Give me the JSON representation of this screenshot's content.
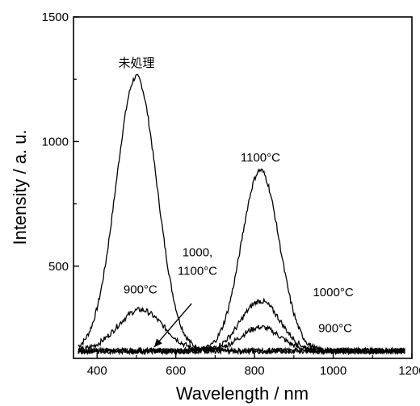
{
  "chart_data": {
    "type": "line",
    "title": "",
    "xlabel": "Wavelength / nm",
    "ylabel": "Intensity / a. u.",
    "xlim": [
      340,
      1200
    ],
    "ylim": [
      130,
      1500
    ],
    "xticks": [
      400,
      600,
      800,
      1000,
      1200
    ],
    "xtick_labels": [
      "400",
      "600",
      "800",
      "1000",
      "1200"
    ],
    "yticks": [
      500,
      1000,
      1500
    ],
    "ytick_labels": [
      "500",
      "1000",
      "1500"
    ],
    "grid": false,
    "legend": "none",
    "baseline": 160,
    "series": [
      {
        "name": "未処理",
        "peaks": [
          {
            "center": 500,
            "height": 1100,
            "width": 52
          }
        ]
      },
      {
        "name": "900°C",
        "peaks": [
          {
            "center": 510,
            "height": 165,
            "width": 58
          },
          {
            "center": 815,
            "height": 95,
            "width": 50
          }
        ]
      },
      {
        "name": "1000°C",
        "peaks": [
          {
            "center": 815,
            "height": 200,
            "width": 50
          }
        ]
      },
      {
        "name": "1100°C",
        "peaks": [
          {
            "center": 815,
            "height": 725,
            "width": 48
          }
        ]
      },
      {
        "name": "1000, 1100°C",
        "peaks": []
      }
    ],
    "annotations": [
      {
        "text": "未処理",
        "x": 500,
        "y": 1300
      },
      {
        "text": "1100°C",
        "x": 815,
        "y": 920
      },
      {
        "text": "1000°C",
        "x": 1000,
        "y": 380
      },
      {
        "text": "900°C",
        "x": 1005,
        "y": 235
      },
      {
        "text": "900°C",
        "x": 510,
        "y": 390
      },
      {
        "text": "1000,",
        "x": 655,
        "y": 540
      },
      {
        "text": "1100°C",
        "x": 655,
        "y": 465
      }
    ],
    "arrow": {
      "from": [
        640,
        350
      ],
      "to": [
        545,
        175
      ]
    }
  }
}
